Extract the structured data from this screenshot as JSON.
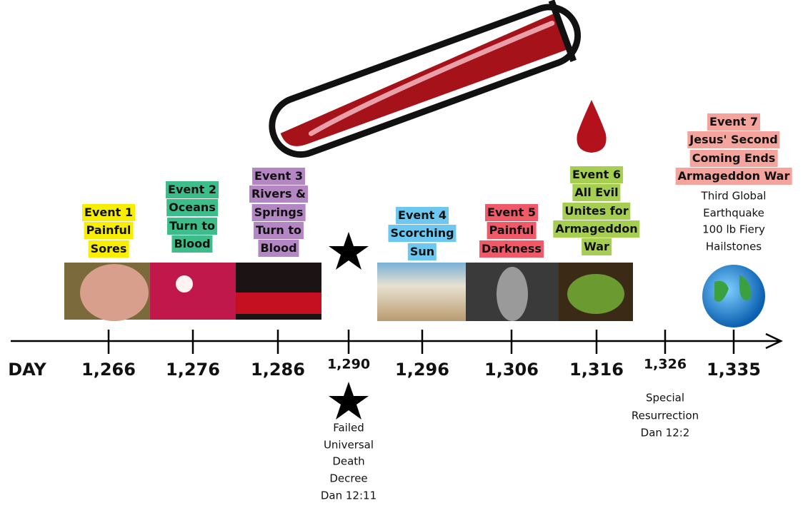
{
  "axis": {
    "label": "DAY",
    "ticks": [
      "1,266",
      "1,276",
      "1,286",
      "1,290",
      "1,296",
      "1,306",
      "1,316",
      "1,326",
      "1,335"
    ]
  },
  "events": [
    {
      "lines": [
        "Event 1",
        "Painful",
        "Sores"
      ]
    },
    {
      "lines": [
        "Event 2",
        "Oceans",
        "Turn to",
        "Blood"
      ]
    },
    {
      "lines": [
        "Event 3",
        "Rivers &",
        "Springs",
        "Turn to",
        "Blood"
      ]
    },
    {
      "lines": [
        "Event 4",
        "Scorching",
        "Sun"
      ]
    },
    {
      "lines": [
        "Event 5",
        "Painful",
        "Darkness"
      ]
    },
    {
      "lines": [
        "Event 6",
        "All Evil",
        "Unites for",
        "Armageddon",
        "War"
      ]
    },
    {
      "lines": [
        "Event 7",
        "Jesus' Second",
        "Coming Ends",
        "Armageddon War"
      ],
      "notes": [
        "Third Global",
        "Earthquake",
        "100 lb Fiery",
        "Hailstones"
      ]
    }
  ],
  "notes_1290": [
    "Failed",
    "Universal",
    "Death",
    "Decree",
    "Dan 12:11"
  ],
  "notes_1326": [
    "Special",
    "Resurrection",
    "Dan 12:2"
  ]
}
